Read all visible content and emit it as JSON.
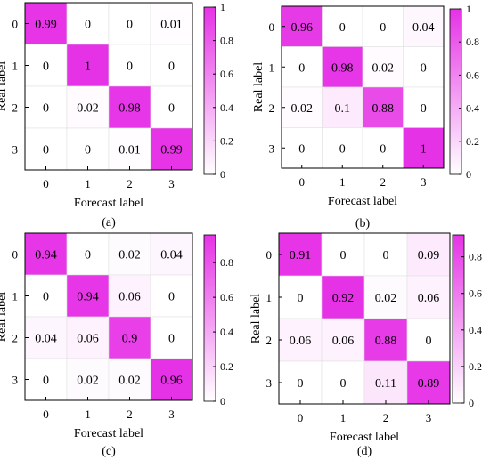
{
  "chart_data": [
    {
      "type": "heatmap",
      "panel_label": "(a)",
      "x_categories": [
        "0",
        "1",
        "2",
        "3"
      ],
      "y_categories": [
        "0",
        "1",
        "2",
        "3"
      ],
      "xlabel": "Forecast label",
      "ylabel": "Real label",
      "values": [
        [
          0.99,
          0,
          0,
          0.01
        ],
        [
          0,
          1,
          0,
          0
        ],
        [
          0,
          0.02,
          0.98,
          0
        ],
        [
          0,
          0,
          0.01,
          0.99
        ]
      ],
      "cell_labels": [
        [
          "0.99",
          "0",
          "0",
          "0.01"
        ],
        [
          "0",
          "1",
          "0",
          "0"
        ],
        [
          "0",
          "0.02",
          "0.98",
          "0"
        ],
        [
          "0",
          "0",
          "0.01",
          "0.99"
        ]
      ],
      "colorbar": {
        "min": 0,
        "max": 1,
        "ticks": [
          "0",
          "0.2",
          "0.4",
          "0.6",
          "0.8",
          "1"
        ],
        "tick_values": [
          0,
          0.2,
          0.4,
          0.6,
          0.8,
          1
        ]
      }
    },
    {
      "type": "heatmap",
      "panel_label": "(b)",
      "x_categories": [
        "0",
        "1",
        "2",
        "3"
      ],
      "y_categories": [
        "0",
        "1",
        "2",
        "3"
      ],
      "xlabel": "Forecast label",
      "ylabel": "Real label",
      "values": [
        [
          0.96,
          0,
          0,
          0.04
        ],
        [
          0,
          0.98,
          0.02,
          0
        ],
        [
          0.02,
          0.1,
          0.88,
          0
        ],
        [
          0,
          0,
          0,
          1
        ]
      ],
      "cell_labels": [
        [
          "0.96",
          "0",
          "0",
          "0.04"
        ],
        [
          "0",
          "0.98",
          "0.02",
          "0"
        ],
        [
          "0.02",
          "0.1",
          "0.88",
          "0"
        ],
        [
          "0",
          "0",
          "0",
          "1"
        ]
      ],
      "colorbar": {
        "min": 0,
        "max": 1,
        "ticks": [
          "0",
          "0.2",
          "0.4",
          "0.6",
          "0.8",
          "1"
        ],
        "tick_values": [
          0,
          0.2,
          0.4,
          0.6,
          0.8,
          1
        ]
      }
    },
    {
      "type": "heatmap",
      "panel_label": "(c)",
      "x_categories": [
        "0",
        "1",
        "2",
        "3"
      ],
      "y_categories": [
        "0",
        "1",
        "2",
        "3"
      ],
      "xlabel": "Forecast label",
      "ylabel": "Real label",
      "values": [
        [
          0.94,
          0,
          0.02,
          0.04
        ],
        [
          0,
          0.94,
          0.06,
          0
        ],
        [
          0.04,
          0.06,
          0.9,
          0
        ],
        [
          0,
          0.02,
          0.02,
          0.96
        ]
      ],
      "cell_labels": [
        [
          "0.94",
          "0",
          "0.02",
          "0.04"
        ],
        [
          "0",
          "0.94",
          "0.06",
          "0"
        ],
        [
          "0.04",
          "0.06",
          "0.9",
          "0"
        ],
        [
          "0",
          "0.02",
          "0.02",
          "0.96"
        ]
      ],
      "colorbar": {
        "min": 0,
        "max": 0.96,
        "ticks": [
          "0",
          "0.2",
          "0.4",
          "0.6",
          "0.8"
        ],
        "tick_values": [
          0,
          0.2,
          0.4,
          0.6,
          0.8
        ]
      }
    },
    {
      "type": "heatmap",
      "panel_label": "(d)",
      "x_categories": [
        "0",
        "1",
        "2",
        "3"
      ],
      "y_categories": [
        "0",
        "1",
        "2",
        "3"
      ],
      "xlabel": "Forecast label",
      "ylabel": "Real label",
      "values": [
        [
          0.91,
          0,
          0,
          0.09
        ],
        [
          0,
          0.92,
          0.02,
          0.06
        ],
        [
          0.06,
          0.06,
          0.88,
          0
        ],
        [
          0,
          0,
          0.11,
          0.89
        ]
      ],
      "cell_labels": [
        [
          "0.91",
          "0",
          "0",
          "0.09"
        ],
        [
          "0",
          "0.92",
          "0.02",
          "0.06"
        ],
        [
          "0.06",
          "0.06",
          "0.88",
          "0"
        ],
        [
          "0",
          "0",
          "0.11",
          "0.89"
        ]
      ],
      "colorbar": {
        "min": 0,
        "max": 0.92,
        "ticks": [
          "0",
          "0.2",
          "0.4",
          "0.6",
          "0.8"
        ],
        "tick_values": [
          0,
          0.2,
          0.4,
          0.6,
          0.8
        ]
      }
    }
  ],
  "colors": {
    "high": "#e632e6",
    "low": "#ffffff",
    "cell_border": "#dddddd",
    "axis": "#000000"
  }
}
